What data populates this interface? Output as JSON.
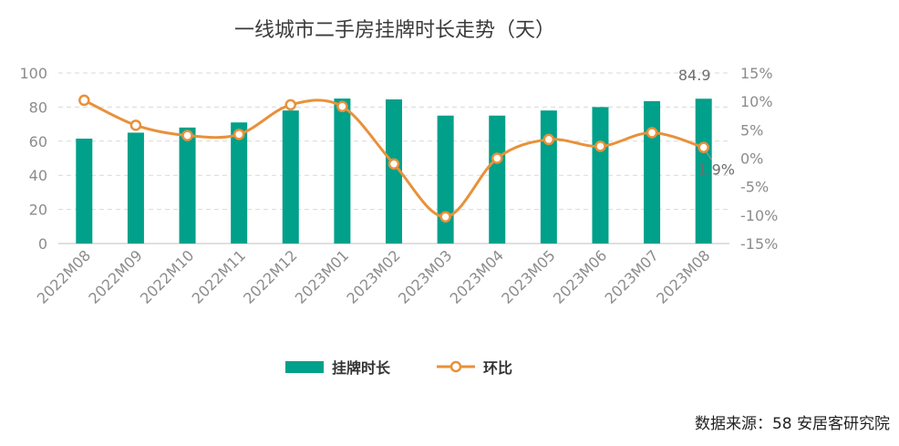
{
  "colors": {
    "bar": "#00A08A",
    "line": "#E8913A",
    "grid": "#d9d9d9",
    "axis": "#bfbfbf"
  },
  "source": "数据来源：58 安居客研究院",
  "chart_data": {
    "type": "bar",
    "title": "一线城市二手房挂牌时长走势（天）",
    "categories": [
      "2022M08",
      "2022M09",
      "2022M10",
      "2022M11",
      "2022M12",
      "2023M01",
      "2023M02",
      "2023M03",
      "2023M04",
      "2023M05",
      "2023M06",
      "2023M07",
      "2023M08"
    ],
    "series": [
      {
        "name": "挂牌时长",
        "type": "bar",
        "axis": "left",
        "values": [
          61.5,
          65,
          68,
          71,
          78,
          85,
          84.5,
          75,
          75,
          78,
          80,
          83.5,
          84.9
        ]
      },
      {
        "name": "环比",
        "type": "line",
        "axis": "right",
        "unit": "%",
        "values": [
          10.2,
          5.8,
          4.0,
          4.2,
          9.4,
          9.1,
          -1.0,
          -10.3,
          0.0,
          3.3,
          2.1,
          4.5,
          1.9
        ]
      }
    ],
    "yleft": {
      "ylim": [
        0,
        100
      ],
      "ticks": [
        "0",
        "20",
        "40",
        "60",
        "80",
        "100"
      ]
    },
    "yright": {
      "ylim": [
        -15,
        15
      ],
      "ticks": [
        "-15%",
        "-10%",
        "-5%",
        "0%",
        "5%",
        "10%",
        "15%"
      ]
    },
    "data_labels": {
      "last_bar": "84.9",
      "last_point": "1.9%"
    },
    "legend": {
      "placement": "bottom",
      "items": [
        "挂牌时长",
        "环比"
      ]
    },
    "grid": true
  }
}
